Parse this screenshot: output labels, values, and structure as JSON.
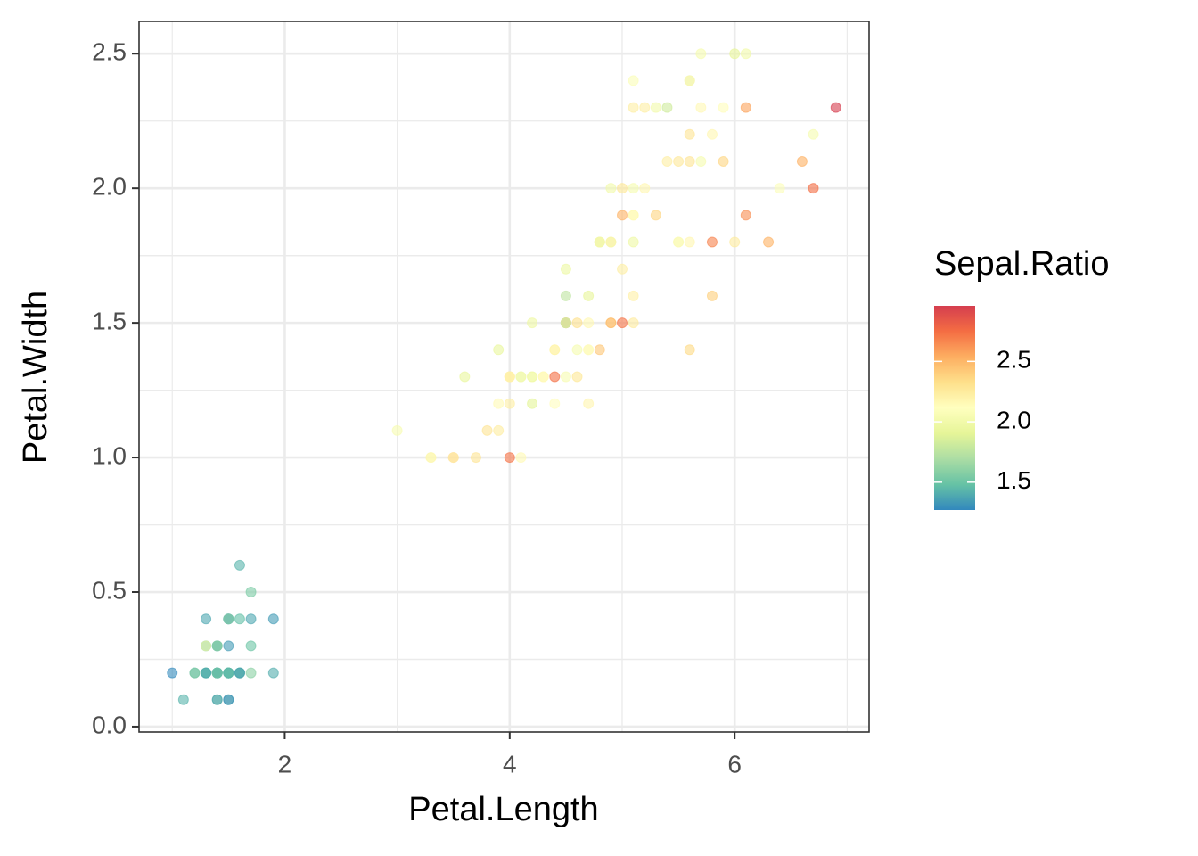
{
  "chart_data": {
    "type": "scatter",
    "x_label": "Petal.Length",
    "y_label": "Petal.Width",
    "xlim": [
      0.705,
      7.195
    ],
    "ylim": [
      -0.02,
      2.62
    ],
    "xticks": [
      2,
      4,
      6
    ],
    "yticks": [
      {
        "value": 0,
        "label": "0.0"
      },
      0.5,
      {
        "value": 1,
        "label": "1.0"
      },
      1.5,
      {
        "value": 2,
        "label": "2.0"
      },
      2.5
    ],
    "grid": true,
    "x": [
      1.4,
      1.4,
      1.3,
      1.5,
      1.4,
      1.7,
      1.4,
      1.5,
      1.4,
      1.5,
      1.5,
      1.6,
      1.4,
      1.1,
      1.2,
      1.5,
      1.3,
      1.4,
      1.7,
      1.5,
      1.7,
      1.5,
      1.0,
      1.7,
      1.9,
      1.6,
      1.6,
      1.5,
      1.4,
      1.6,
      1.6,
      1.5,
      1.5,
      1.4,
      1.5,
      1.2,
      1.3,
      1.4,
      1.3,
      1.5,
      1.3,
      1.3,
      1.3,
      1.6,
      1.9,
      1.4,
      1.6,
      1.4,
      1.5,
      1.4,
      4.7,
      4.5,
      4.9,
      4.0,
      4.6,
      4.5,
      4.7,
      3.3,
      4.6,
      3.9,
      3.5,
      4.2,
      4.0,
      4.7,
      3.6,
      4.4,
      4.5,
      4.1,
      4.5,
      3.9,
      4.8,
      4.0,
      4.9,
      4.7,
      4.3,
      4.4,
      4.8,
      5.0,
      4.5,
      3.5,
      3.8,
      3.7,
      3.9,
      5.1,
      4.5,
      4.5,
      4.7,
      4.4,
      4.1,
      4.0,
      4.4,
      4.6,
      4.0,
      3.3,
      4.2,
      4.2,
      4.2,
      4.3,
      3.0,
      4.1,
      6.0,
      5.1,
      5.9,
      5.6,
      5.8,
      6.6,
      4.5,
      6.3,
      5.8,
      6.1,
      5.1,
      5.3,
      5.5,
      5.0,
      5.1,
      5.3,
      5.5,
      6.7,
      6.9,
      5.0,
      5.7,
      4.9,
      6.7,
      4.9,
      5.7,
      6.0,
      4.8,
      4.9,
      5.6,
      5.8,
      6.1,
      6.4,
      5.6,
      5.1,
      5.6,
      6.1,
      5.6,
      5.5,
      4.8,
      5.4,
      5.6,
      5.1,
      5.1,
      5.9,
      5.7,
      5.2,
      5.0,
      5.2,
      5.4,
      5.1
    ],
    "y": [
      0.2,
      0.2,
      0.2,
      0.2,
      0.2,
      0.4,
      0.3,
      0.2,
      0.2,
      0.1,
      0.2,
      0.2,
      0.1,
      0.1,
      0.2,
      0.4,
      0.4,
      0.3,
      0.3,
      0.3,
      0.2,
      0.4,
      0.2,
      0.5,
      0.2,
      0.2,
      0.4,
      0.2,
      0.2,
      0.2,
      0.2,
      0.4,
      0.1,
      0.2,
      0.2,
      0.2,
      0.2,
      0.1,
      0.2,
      0.2,
      0.3,
      0.3,
      0.2,
      0.6,
      0.4,
      0.3,
      0.2,
      0.2,
      0.2,
      0.2,
      1.4,
      1.5,
      1.5,
      1.3,
      1.5,
      1.3,
      1.6,
      1.0,
      1.3,
      1.4,
      1.0,
      1.5,
      1.0,
      1.4,
      1.3,
      1.4,
      1.5,
      1.0,
      1.5,
      1.1,
      1.8,
      1.3,
      1.5,
      1.2,
      1.3,
      1.4,
      1.4,
      1.7,
      1.5,
      1.0,
      1.1,
      1.0,
      1.2,
      1.6,
      1.5,
      1.6,
      1.5,
      1.3,
      1.3,
      1.3,
      1.2,
      1.4,
      1.2,
      1.0,
      1.3,
      1.2,
      1.3,
      1.3,
      1.1,
      1.3,
      2.5,
      1.9,
      2.1,
      1.8,
      2.2,
      2.1,
      1.7,
      1.8,
      1.8,
      2.5,
      2.0,
      1.9,
      2.1,
      2.0,
      2.4,
      2.3,
      1.8,
      2.2,
      2.3,
      1.5,
      2.3,
      2.0,
      2.0,
      1.8,
      2.1,
      1.8,
      1.8,
      1.8,
      2.1,
      1.6,
      1.9,
      2.0,
      2.2,
      1.5,
      1.4,
      2.3,
      2.4,
      1.8,
      1.8,
      2.1,
      2.4,
      2.3,
      1.9,
      2.3,
      2.5,
      2.3,
      1.9,
      2.0,
      2.3,
      1.8
    ],
    "color_values": [
      1.46,
      1.63,
      1.47,
      1.48,
      1.39,
      1.38,
      1.35,
      1.47,
      1.52,
      1.58,
      1.46,
      1.41,
      1.6,
      1.43,
      1.45,
      1.3,
      1.38,
      1.46,
      1.5,
      1.34,
      1.59,
      1.38,
      1.28,
      1.55,
      1.41,
      1.67,
      1.47,
      1.49,
      1.53,
      1.47,
      1.55,
      1.59,
      1.27,
      1.31,
      1.58,
      1.56,
      1.57,
      1.36,
      1.47,
      1.5,
      1.43,
      1.96,
      1.38,
      1.43,
      1.34,
      1.6,
      1.34,
      1.44,
      1.43,
      1.52,
      2.19,
      2.0,
      2.23,
      2.39,
      2.32,
      2.04,
      1.91,
      2.04,
      2.28,
      1.93,
      2.5,
      1.97,
      2.73,
      2.1,
      1.93,
      2.16,
      1.87,
      2.15,
      2.82,
      2.24,
      1.84,
      2.18,
      2.52,
      2.18,
      2.21,
      2.2,
      2.43,
      2.23,
      2.07,
      2.19,
      2.29,
      2.29,
      2.15,
      2.22,
      1.8,
      1.76,
      2.16,
      2.74,
      1.87,
      2.2,
      2.12,
      2.03,
      2.23,
      2.17,
      2.07,
      1.9,
      1.97,
      2.14,
      2.04,
      2.04,
      1.91,
      2.15,
      2.37,
      2.17,
      2.17,
      2.53,
      1.96,
      2.52,
      2.68,
      2.0,
      2.03,
      2.37,
      2.27,
      2.28,
      2.07,
      2.0,
      2.17,
      2.03,
      2.96,
      2.73,
      2.16,
      2.0,
      2.75,
      2.33,
      2.03,
      2.25,
      2.21,
      2.03,
      2.29,
      2.4,
      2.64,
      2.08,
      2.29,
      2.25,
      2.35,
      2.57,
      1.85,
      2.06,
      2.0,
      2.23,
      2.16,
      2.23,
      2.15,
      2.13,
      2.03,
      2.23,
      2.52,
      2.17,
      1.82,
      1.97
    ],
    "colorbar": {
      "title": "Sepal.Ratio",
      "lim": [
        1.27,
        2.96
      ],
      "ticks": [
        1.5,
        {
          "value": 2,
          "label": "2.0"
        },
        2.5
      ],
      "palette": [
        "#3288BD",
        "#66C2A5",
        "#ABDDA4",
        "#E6F598",
        "#FFFFBF",
        "#FEE08B",
        "#FDAE61",
        "#F46D43",
        "#D53E4F"
      ]
    }
  }
}
